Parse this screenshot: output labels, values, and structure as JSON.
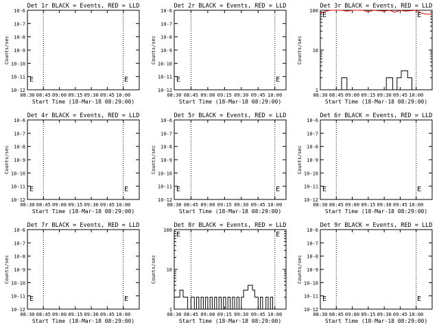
{
  "chart_data": [
    {
      "type": "line",
      "title": "Det 1r BLACK = Events, RED = LLD",
      "xlabel": "Start Time (18-Mar-18 08:29:00)",
      "ylabel": "Counts/sec",
      "y_scale": "log",
      "ylim": [
        1e-06,
        1e-08
      ],
      "yticks": [
        "10-6",
        "10-7",
        "10-8",
        "10-9",
        "10-10",
        "10-11",
        "10-12"
      ],
      "xticks": [
        "08:30",
        "08:45",
        "09:00",
        "09:15",
        "09:30",
        "09:45",
        "10:00"
      ],
      "xlim": [
        0,
        105
      ],
      "dotted_vlines": [
        15,
        90
      ],
      "markers": [
        {
          "label": "E",
          "x": 0
        },
        {
          "label": "E",
          "x": 89
        }
      ],
      "events": [],
      "lld": []
    },
    {
      "type": "line",
      "title": "Det 2r BLACK = Events, RED = LLD",
      "xlabel": "Start Time (18-Mar-18 08:29:00)",
      "ylabel": "Counts/sec",
      "y_scale": "log",
      "ylim": [
        1e-06,
        1e-08
      ],
      "yticks": [
        "10-6",
        "10-7",
        "10-8",
        "10-9",
        "10-10",
        "10-11",
        "10-12"
      ],
      "xticks": [
        "08:30",
        "08:45",
        "09:00",
        "09:15",
        "09:30",
        "09:45",
        "10:00"
      ],
      "xlim": [
        0,
        100
      ],
      "dotted_vlines": [
        15,
        90
      ],
      "markers": [
        {
          "label": "E",
          "x": 0
        },
        {
          "label": "E",
          "x": 89
        }
      ],
      "events": [],
      "lld": []
    },
    {
      "type": "line",
      "title": "Det 3r BLACK = Events, RED = LLD",
      "xlabel": "Start Time (18-Mar-18 08:29:00)",
      "ylabel": "Counts/sec",
      "y_scale": "log",
      "ylim": [
        1,
        100
      ],
      "yticks": [
        "1",
        "10",
        "100"
      ],
      "xticks": [
        "08:30",
        "08:45",
        "09:00",
        "09:15",
        "09:30",
        "09:45",
        "10:00"
      ],
      "xlim": [
        0,
        105
      ],
      "dotted_vlines": [
        15,
        90
      ],
      "markers": [
        {
          "label": "E",
          "x": 0
        },
        {
          "label": "E",
          "x": 89
        }
      ],
      "events": [
        [
          15,
          1
        ],
        [
          20,
          1
        ],
        [
          20,
          2
        ],
        [
          25,
          2
        ],
        [
          25,
          1
        ],
        [
          60,
          1
        ],
        [
          62,
          1
        ],
        [
          62,
          2
        ],
        [
          68,
          2
        ],
        [
          68,
          1
        ],
        [
          72,
          1
        ],
        [
          72,
          2
        ],
        [
          76,
          2
        ],
        [
          76,
          3
        ],
        [
          82,
          3
        ],
        [
          82,
          2
        ],
        [
          86,
          2
        ],
        [
          86,
          1
        ],
        [
          105,
          1
        ]
      ],
      "lld": [
        [
          0,
          85
        ],
        [
          5,
          95
        ],
        [
          10,
          100
        ],
        [
          20,
          100
        ],
        [
          25,
          95
        ],
        [
          30,
          100
        ],
        [
          40,
          100
        ],
        [
          45,
          92
        ],
        [
          50,
          100
        ],
        [
          60,
          95
        ],
        [
          65,
          100
        ],
        [
          70,
          90
        ],
        [
          75,
          100
        ],
        [
          80,
          95
        ],
        [
          90,
          100
        ],
        [
          95,
          85
        ],
        [
          100,
          80
        ],
        [
          105,
          80
        ]
      ]
    },
    {
      "type": "line",
      "title": "Det 4r BLACK = Events, RED = LLD",
      "xlabel": "Start Time (18-Mar-18 08:29:00)",
      "ylabel": "Counts/sec",
      "y_scale": "log",
      "ylim": [
        1e-06,
        1e-08
      ],
      "yticks": [
        "10-6",
        "10-7",
        "10-8",
        "10-9",
        "10-10",
        "10-11",
        "10-12"
      ],
      "xticks": [
        "08:30",
        "08:45",
        "09:00",
        "09:15",
        "09:30",
        "09:45",
        "10:00"
      ],
      "xlim": [
        0,
        105
      ],
      "dotted_vlines": [
        15,
        90
      ],
      "markers": [
        {
          "label": "E",
          "x": 0
        },
        {
          "label": "E",
          "x": 89
        }
      ],
      "events": [],
      "lld": []
    },
    {
      "type": "line",
      "title": "Det 5r BLACK = Events, RED = LLD",
      "xlabel": "Start Time (18-Mar-18 08:29:00)",
      "ylabel": "Counts/sec",
      "y_scale": "log",
      "ylim": [
        1e-06,
        1e-08
      ],
      "yticks": [
        "10-6",
        "10-7",
        "10-8",
        "10-9",
        "10-10",
        "10-11",
        "10-12"
      ],
      "xticks": [
        "08:30",
        "08:45",
        "09:00",
        "09:15",
        "09:30",
        "09:45",
        "10:00"
      ],
      "xlim": [
        0,
        100
      ],
      "dotted_vlines": [
        15,
        90
      ],
      "markers": [
        {
          "label": "E",
          "x": 0
        },
        {
          "label": "E",
          "x": 89
        }
      ],
      "events": [],
      "lld": []
    },
    {
      "type": "line",
      "title": "Det 6r BLACK = Events, RED = LLD",
      "xlabel": "Start Time (18-Mar-18 08:29:00)",
      "ylabel": "Counts/sec",
      "y_scale": "log",
      "ylim": [
        1e-06,
        1e-08
      ],
      "yticks": [
        "10-6",
        "10-7",
        "10-8",
        "10-9",
        "10-10",
        "10-11",
        "10-12"
      ],
      "xticks": [
        "08:30",
        "08:45",
        "09:00",
        "09:15",
        "09:30",
        "09:45",
        "10:00"
      ],
      "xlim": [
        0,
        105
      ],
      "dotted_vlines": [
        15,
        90
      ],
      "markers": [
        {
          "label": "E",
          "x": 0
        },
        {
          "label": "E",
          "x": 89
        }
      ],
      "events": [],
      "lld": []
    },
    {
      "type": "line",
      "title": "Det 7r BLACK = Events, RED = LLD",
      "xlabel": "Start Time (18-Mar-18 08:29:00)",
      "ylabel": "Counts/sec",
      "y_scale": "log",
      "ylim": [
        1e-06,
        1e-08
      ],
      "yticks": [
        "10-6",
        "10-7",
        "10-8",
        "10-9",
        "10-10",
        "10-11",
        "10-12"
      ],
      "xticks": [
        "08:30",
        "08:45",
        "09:00",
        "09:15",
        "09:30",
        "09:45",
        "10:00"
      ],
      "xlim": [
        0,
        105
      ],
      "dotted_vlines": [
        15,
        90
      ],
      "markers": [
        {
          "label": "E",
          "x": 0
        },
        {
          "label": "E",
          "x": 89
        }
      ],
      "events": [],
      "lld": []
    },
    {
      "type": "line",
      "title": "Det 8r BLACK = Events, RED = LLD",
      "xlabel": "Start Time (18-Mar-18 08:29:00)",
      "ylabel": "Counts/sec",
      "y_scale": "log",
      "ylim": [
        1,
        100
      ],
      "yticks": [
        "1",
        "10",
        "100"
      ],
      "xticks": [
        "08:30",
        "08:45",
        "09:00",
        "09:15",
        "09:30",
        "09:45",
        "10:00"
      ],
      "xlim": [
        0,
        100
      ],
      "dotted_vlines": [
        15,
        90
      ],
      "markers": [
        {
          "label": "E",
          "x": 0
        },
        {
          "label": "E",
          "x": 89
        }
      ],
      "events": [
        [
          0,
          2
        ],
        [
          5,
          2
        ],
        [
          5,
          3
        ],
        [
          8,
          3
        ],
        [
          8,
          2
        ],
        [
          12,
          2
        ],
        [
          12,
          1
        ],
        [
          15,
          1
        ],
        [
          15,
          2
        ],
        [
          18,
          2
        ],
        [
          18,
          1
        ],
        [
          20,
          1
        ],
        [
          20,
          2
        ],
        [
          22,
          2
        ],
        [
          22,
          1
        ],
        [
          24,
          1
        ],
        [
          24,
          2
        ],
        [
          26,
          2
        ],
        [
          26,
          1
        ],
        [
          28,
          1
        ],
        [
          28,
          2
        ],
        [
          30,
          2
        ],
        [
          30,
          1
        ],
        [
          32,
          1
        ],
        [
          32,
          2
        ],
        [
          34,
          2
        ],
        [
          34,
          1
        ],
        [
          36,
          1
        ],
        [
          36,
          2
        ],
        [
          38,
          2
        ],
        [
          38,
          1
        ],
        [
          40,
          1
        ],
        [
          40,
          2
        ],
        [
          42,
          2
        ],
        [
          42,
          1
        ],
        [
          44,
          1
        ],
        [
          44,
          2
        ],
        [
          46,
          2
        ],
        [
          46,
          1
        ],
        [
          48,
          1
        ],
        [
          48,
          2
        ],
        [
          50,
          2
        ],
        [
          50,
          1
        ],
        [
          52,
          1
        ],
        [
          52,
          2
        ],
        [
          54,
          2
        ],
        [
          54,
          1
        ],
        [
          56,
          1
        ],
        [
          56,
          2
        ],
        [
          58,
          2
        ],
        [
          58,
          1
        ],
        [
          60,
          1
        ],
        [
          60,
          2
        ],
        [
          62,
          2
        ],
        [
          62,
          3
        ],
        [
          66,
          3
        ],
        [
          66,
          4
        ],
        [
          70,
          4
        ],
        [
          70,
          3
        ],
        [
          72,
          3
        ],
        [
          72,
          2
        ],
        [
          75,
          2
        ],
        [
          75,
          1
        ],
        [
          77,
          1
        ],
        [
          77,
          2
        ],
        [
          79,
          2
        ],
        [
          79,
          1
        ],
        [
          82,
          1
        ],
        [
          82,
          2
        ],
        [
          84,
          2
        ],
        [
          84,
          1
        ],
        [
          86,
          1
        ],
        [
          86,
          2
        ],
        [
          88,
          2
        ],
        [
          88,
          1
        ]
      ],
      "lld": []
    },
    {
      "type": "line",
      "title": "Det 9r BLACK = Events, RED = LLD",
      "xlabel": "Start Time (18-Mar-18 08:29:00)",
      "ylabel": "Counts/sec",
      "y_scale": "log",
      "ylim": [
        1e-06,
        1e-08
      ],
      "yticks": [
        "10-6",
        "10-7",
        "10-8",
        "10-9",
        "10-10",
        "10-11",
        "10-12"
      ],
      "xticks": [
        "08:30",
        "08:45",
        "09:00",
        "09:15",
        "09:30",
        "09:45",
        "10:00"
      ],
      "xlim": [
        0,
        105
      ],
      "dotted_vlines": [
        15,
        90
      ],
      "markers": [
        {
          "label": "E",
          "x": 0
        },
        {
          "label": "E",
          "x": 89
        }
      ],
      "events": [],
      "lld": []
    }
  ],
  "colors": {
    "events": "#000000",
    "lld": "#dd0000",
    "axis": "#000000",
    "background": "#ffffff"
  }
}
